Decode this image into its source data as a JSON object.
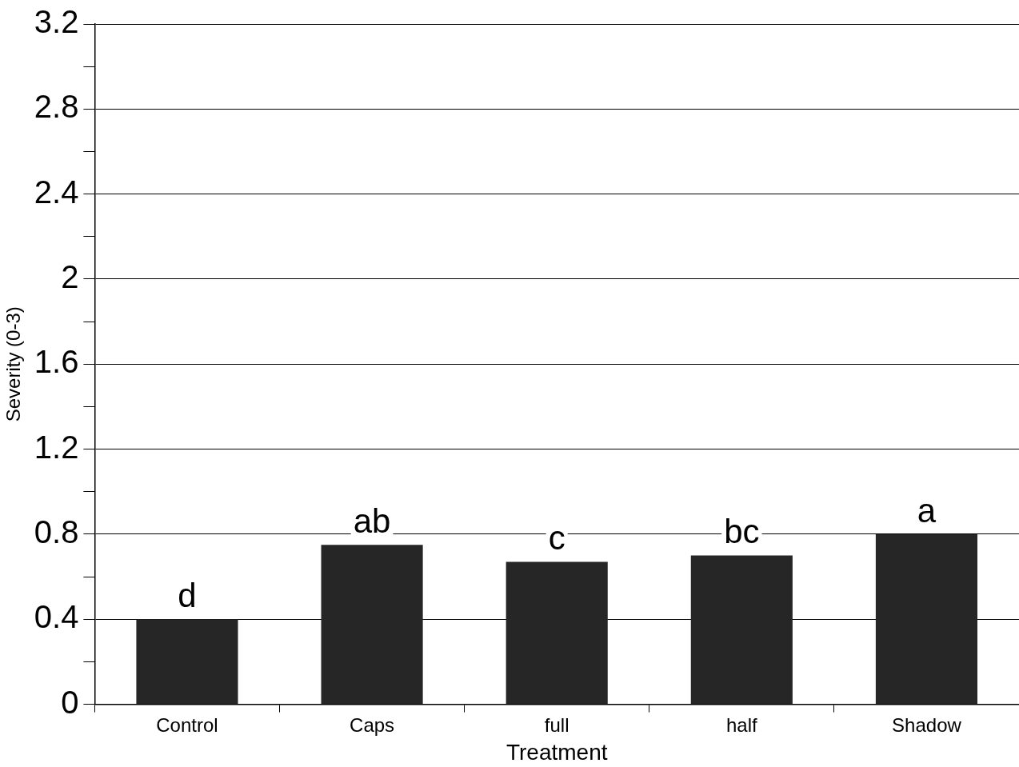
{
  "chart_data": {
    "type": "bar",
    "xlabel": "Treatment",
    "ylabel": "Severity (0-3)",
    "categories": [
      "Control",
      "Caps",
      "full",
      "half",
      "Shadow"
    ],
    "values": [
      0.4,
      0.75,
      0.67,
      0.7,
      0.8
    ],
    "color": "#262626",
    "ylim": [
      0,
      3.2
    ],
    "yticks": [
      0,
      {
        "value": 0.2,
        "label": null
      },
      "0.4",
      {
        "value": 0.6,
        "label": null
      },
      "0.8",
      {
        "value": 1.0,
        "label": null
      },
      "1.2",
      {
        "value": 1.4,
        "label": null
      },
      "1.6",
      {
        "value": 1.8,
        "label": null
      },
      2,
      {
        "value": 2.2,
        "label": null
      },
      "2.4",
      {
        "value": 2.6,
        "label": null
      },
      "2.8",
      {
        "value": 3.0,
        "label": null
      },
      "3.2"
    ],
    "grid": "y",
    "legend": false,
    "annotations": [
      {
        "text": "d",
        "x": "Control",
        "y": 0.4
      },
      {
        "text": "ab",
        "x": "Caps",
        "y": 0.75
      },
      {
        "text": "c",
        "x": "full",
        "y": 0.67
      },
      {
        "text": "bc",
        "x": "half",
        "y": 0.7
      },
      {
        "text": "a",
        "x": "Shadow",
        "y": 0.8
      }
    ]
  }
}
